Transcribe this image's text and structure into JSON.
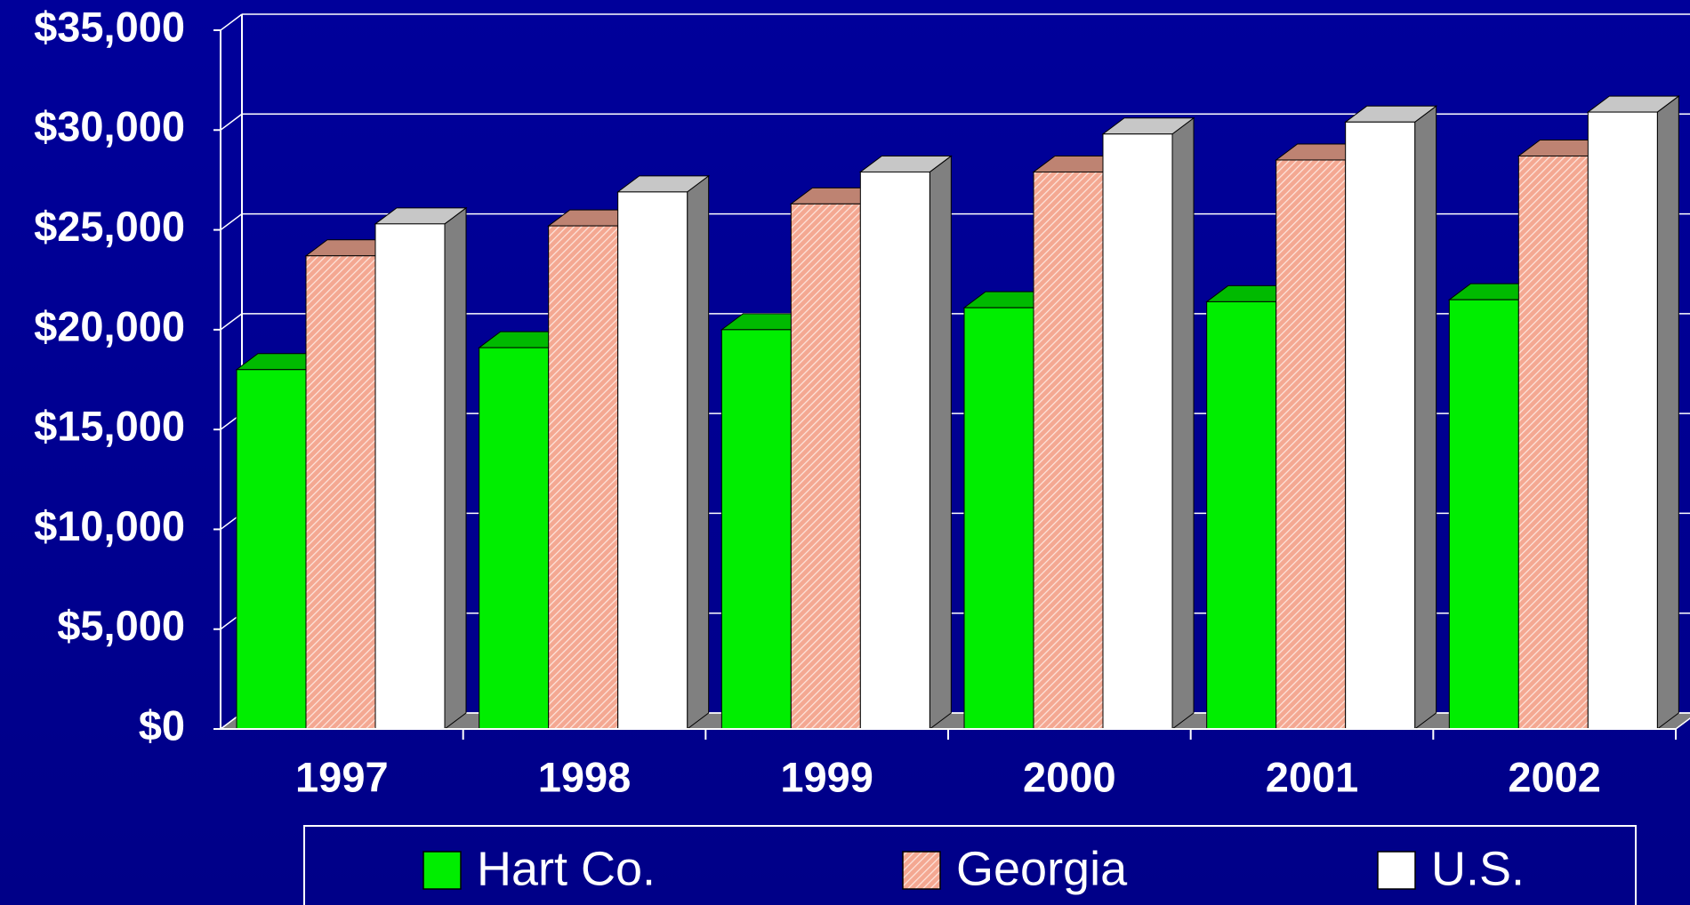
{
  "chart_data": {
    "type": "bar3d",
    "categories": [
      "1997",
      "1998",
      "1999",
      "2000",
      "2001",
      "2002"
    ],
    "series": [
      {
        "name": "Hart Co.",
        "color": "#00ee00",
        "values": [
          18000,
          19100,
          20000,
          21100,
          21400,
          21500
        ]
      },
      {
        "name": "Georgia",
        "color": "#f4a892",
        "values": [
          23700,
          25200,
          26300,
          27900,
          28500,
          28700
        ]
      },
      {
        "name": "U.S.",
        "color": "#ffffff",
        "values": [
          25300,
          26900,
          27900,
          29800,
          30400,
          30900
        ]
      }
    ],
    "ylim": [
      0,
      35000
    ],
    "yticks": [
      {
        "value": 0,
        "label": "$0"
      },
      {
        "value": 5000,
        "label": "$5,000"
      },
      {
        "value": 10000,
        "label": "$10,000"
      },
      {
        "value": 15000,
        "label": "$15,000"
      },
      {
        "value": 20000,
        "label": "$20,000"
      },
      {
        "value": 25000,
        "label": "$25,000"
      },
      {
        "value": 30000,
        "label": "$30,000"
      },
      {
        "value": 35000,
        "label": "$35,000"
      }
    ],
    "grid": true
  }
}
